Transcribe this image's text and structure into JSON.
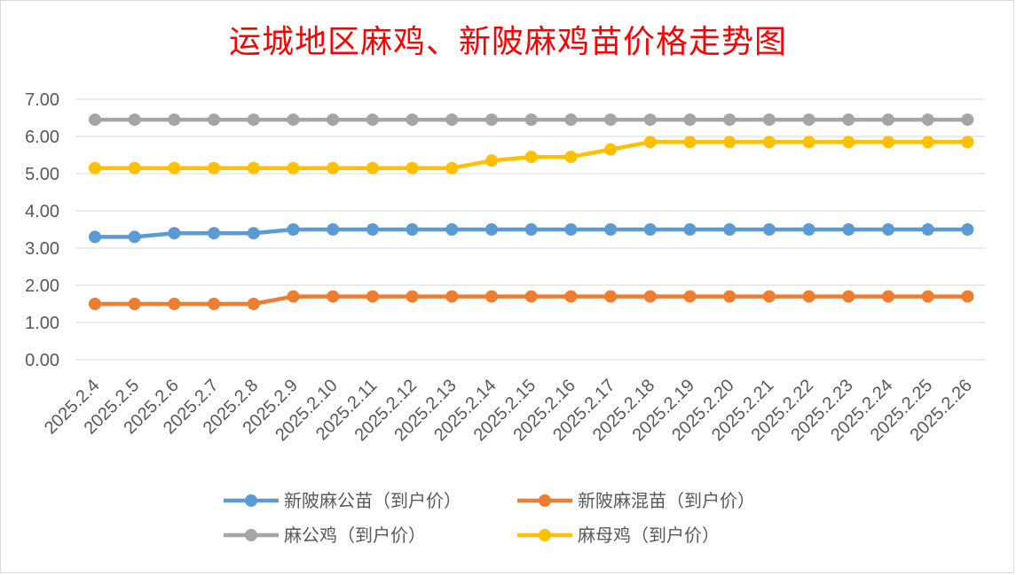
{
  "chart_data": {
    "type": "line",
    "title": "运城地区麻鸡、新陂麻鸡苗价格走势图",
    "categories": [
      "2025.2.4",
      "2025.2.5",
      "2025.2.6",
      "2025.2.7",
      "2025.2.8",
      "2025.2.9",
      "2025.2.10",
      "2025.2.11",
      "2025.2.12",
      "2025.2.13",
      "2025.2.14",
      "2025.2.15",
      "2025.2.16",
      "2025.2.17",
      "2025.2.18",
      "2025.2.19",
      "2025.2.20",
      "2025.2.21",
      "2025.2.22",
      "2025.2.23",
      "2025.2.24",
      "2025.2.25",
      "2025.2.26"
    ],
    "y_ticks": [
      "0.00",
      "1.00",
      "2.00",
      "3.00",
      "4.00",
      "5.00",
      "6.00",
      "7.00"
    ],
    "ylim": [
      0,
      7
    ],
    "grid": true,
    "legend_position": "bottom",
    "series": [
      {
        "name": "新陂麻公苗（到户价）",
        "color": "#5b9bd5",
        "values": [
          3.3,
          3.3,
          3.4,
          3.4,
          3.4,
          3.5,
          3.5,
          3.5,
          3.5,
          3.5,
          3.5,
          3.5,
          3.5,
          3.5,
          3.5,
          3.5,
          3.5,
          3.5,
          3.5,
          3.5,
          3.5,
          3.5,
          3.5
        ]
      },
      {
        "name": "新陂麻混苗（到户价）",
        "color": "#ed7d31",
        "values": [
          1.5,
          1.5,
          1.5,
          1.5,
          1.5,
          1.7,
          1.7,
          1.7,
          1.7,
          1.7,
          1.7,
          1.7,
          1.7,
          1.7,
          1.7,
          1.7,
          1.7,
          1.7,
          1.7,
          1.7,
          1.7,
          1.7,
          1.7
        ]
      },
      {
        "name": "麻公鸡（到户价）",
        "color": "#a5a5a5",
        "values": [
          6.45,
          6.45,
          6.45,
          6.45,
          6.45,
          6.45,
          6.45,
          6.45,
          6.45,
          6.45,
          6.45,
          6.45,
          6.45,
          6.45,
          6.45,
          6.45,
          6.45,
          6.45,
          6.45,
          6.45,
          6.45,
          6.45,
          6.45
        ]
      },
      {
        "name": "麻母鸡（到户价）",
        "color": "#ffc000",
        "values": [
          5.15,
          5.15,
          5.15,
          5.15,
          5.15,
          5.15,
          5.15,
          5.15,
          5.15,
          5.15,
          5.35,
          5.45,
          5.45,
          5.65,
          5.85,
          5.85,
          5.85,
          5.85,
          5.85,
          5.85,
          5.85,
          5.85,
          5.85
        ]
      }
    ]
  }
}
